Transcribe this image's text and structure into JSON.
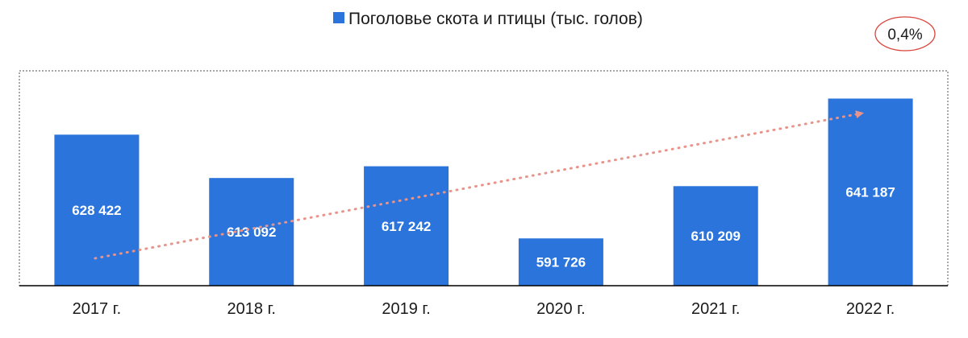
{
  "chart_data": {
    "type": "bar",
    "categories": [
      "2017 г.",
      "2018 г.",
      "2019 г.",
      "2020 г.",
      "2021 г.",
      "2022 г."
    ],
    "series": [
      {
        "name": "Поголовье скота и птицы (тыс. голов)",
        "values": [
          628422,
          613092,
          617242,
          591726,
          610209,
          641187
        ],
        "labels": [
          "628 422",
          "613 092",
          "617 242",
          "591 726",
          "610 209",
          "641 187"
        ]
      }
    ],
    "ylim": [
      575000,
      651000
    ],
    "legend": "top-center",
    "grid": false,
    "trendline": {
      "style": "dotted",
      "from": "2017 г.",
      "to": "2022 г."
    },
    "annotation": "0,4%",
    "colors": {
      "bar": "#2a74dc",
      "trend": "#e8948a",
      "badge_border": "#d9443b",
      "axis": "#000000",
      "frame": "#555555"
    }
  }
}
